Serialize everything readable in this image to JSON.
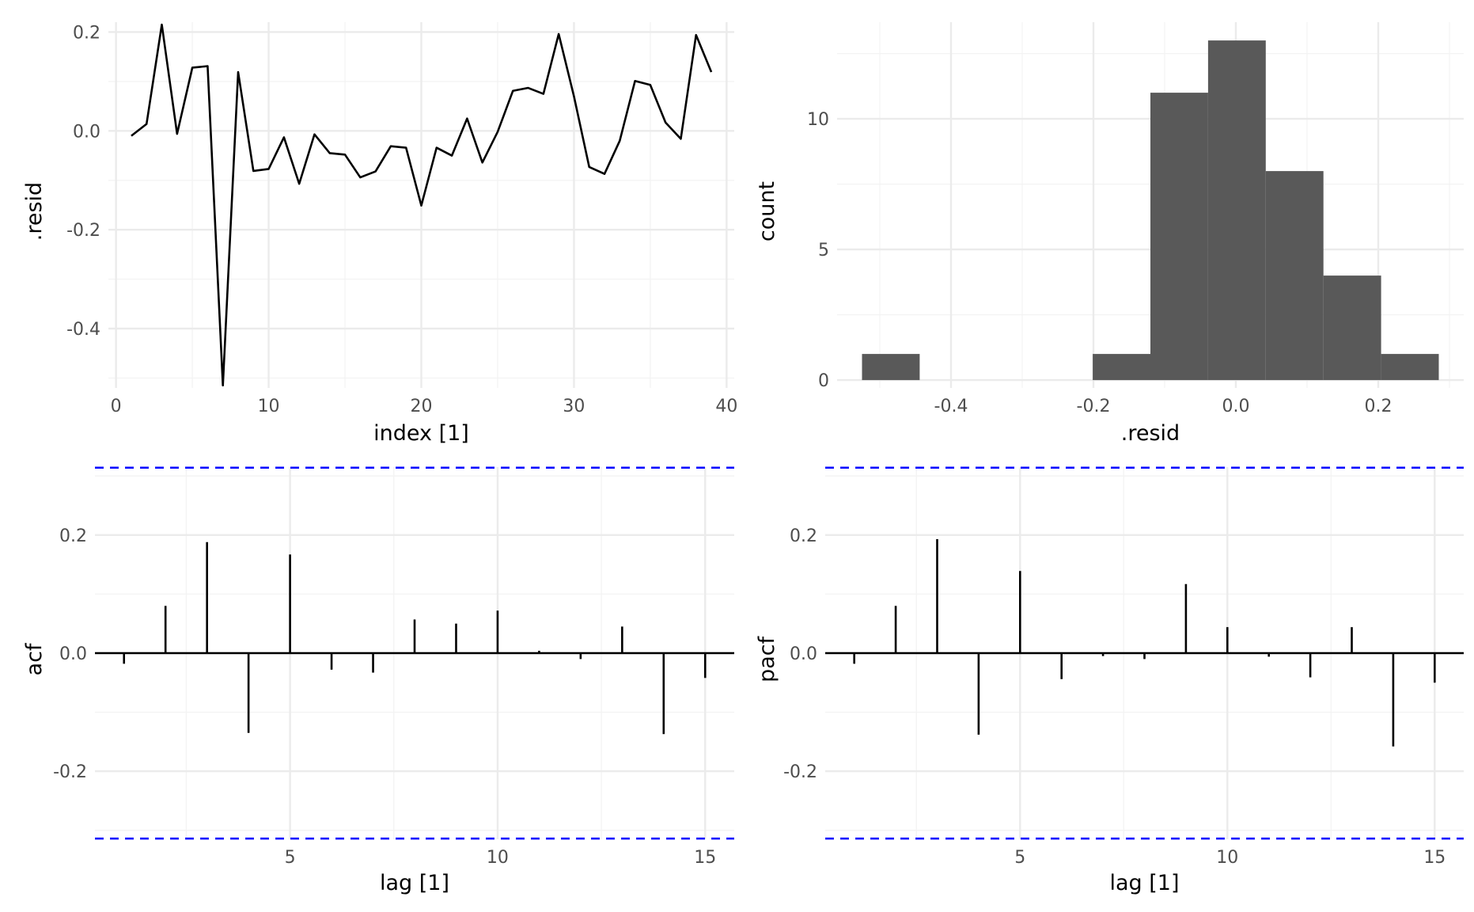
{
  "chart_data": [
    {
      "id": "resid-line",
      "type": "line",
      "xlabel": "index [1]",
      "ylabel": ".resid",
      "xlim": [
        -0.5,
        40.5
      ],
      "ylim": [
        -0.52,
        0.22
      ],
      "x_ticks": [
        0,
        10,
        20,
        30,
        40
      ],
      "y_ticks": [
        -0.4,
        -0.2,
        0.0,
        0.2
      ],
      "x_tick_labels": [
        "0",
        "10",
        "20",
        "30",
        "40"
      ],
      "y_tick_labels": [
        "-0.4",
        "-0.2",
        "0.0",
        "0.2"
      ],
      "grid": true,
      "x": [
        1,
        2,
        3,
        4,
        5,
        6,
        7,
        8,
        9,
        10,
        11,
        12,
        13,
        14,
        15,
        16,
        17,
        18,
        19,
        20,
        21,
        22,
        23,
        24,
        25,
        26,
        27,
        28,
        29,
        30,
        31,
        32,
        33,
        34,
        35,
        36,
        37,
        38,
        39
      ],
      "y": [
        -0.01,
        0.014,
        0.215,
        -0.006,
        0.128,
        0.131,
        -0.515,
        0.119,
        -0.081,
        -0.077,
        -0.013,
        -0.107,
        -0.007,
        -0.045,
        -0.048,
        -0.094,
        -0.082,
        -0.031,
        -0.034,
        -0.151,
        -0.034,
        -0.05,
        0.025,
        -0.064,
        -0.002,
        0.081,
        0.087,
        0.075,
        0.196,
        0.07,
        -0.073,
        -0.087,
        -0.02,
        0.101,
        0.093,
        0.017,
        -0.016,
        0.194,
        0.119
      ]
    },
    {
      "id": "resid-histogram",
      "type": "bar",
      "xlabel": ".resid",
      "ylabel": "count",
      "xlim": [
        -0.56,
        0.32
      ],
      "ylim": [
        -0.3,
        13.7
      ],
      "x_ticks": [
        -0.4,
        -0.2,
        0.0,
        0.2
      ],
      "y_ticks": [
        0,
        5,
        10
      ],
      "x_tick_labels": [
        "-0.4",
        "-0.2",
        "0.0",
        "0.2"
      ],
      "y_tick_labels": [
        "0",
        "5",
        "10"
      ],
      "grid": true,
      "bins": [
        {
          "x0": -0.525,
          "x1": -0.444,
          "count": 1
        },
        {
          "x0": -0.444,
          "x1": -0.363,
          "count": 0
        },
        {
          "x0": -0.363,
          "x1": -0.282,
          "count": 0
        },
        {
          "x0": -0.282,
          "x1": -0.201,
          "count": 0
        },
        {
          "x0": -0.201,
          "x1": -0.12,
          "count": 1
        },
        {
          "x0": -0.12,
          "x1": -0.039,
          "count": 11
        },
        {
          "x0": -0.039,
          "x1": 0.042,
          "count": 13
        },
        {
          "x0": 0.042,
          "x1": 0.123,
          "count": 8
        },
        {
          "x0": 0.123,
          "x1": 0.204,
          "count": 4
        },
        {
          "x0": 0.204,
          "x1": 0.285,
          "count": 1
        }
      ]
    },
    {
      "id": "acf",
      "type": "bar",
      "xlabel": "lag [1]",
      "ylabel": "acf",
      "xlim": [
        0.3,
        15.7
      ],
      "ylim": [
        -0.315,
        0.315
      ],
      "x_ticks": [
        5,
        10,
        15
      ],
      "y_ticks": [
        -0.2,
        0.0,
        0.2
      ],
      "x_tick_labels": [
        "5",
        "10",
        "15"
      ],
      "y_tick_labels": [
        "-0.2",
        "0.0",
        "0.2"
      ],
      "grid": true,
      "significance_bounds": [
        0.314,
        -0.314
      ],
      "bound_color": "#0000ff",
      "lags": [
        1,
        2,
        3,
        4,
        5,
        6,
        7,
        8,
        9,
        10,
        11,
        12,
        13,
        14,
        15
      ],
      "values": [
        -0.018,
        0.08,
        0.188,
        -0.135,
        0.167,
        -0.028,
        -0.033,
        0.057,
        0.05,
        0.072,
        0.004,
        -0.01,
        0.045,
        -0.137,
        -0.042
      ]
    },
    {
      "id": "pacf",
      "type": "bar",
      "xlabel": "lag [1]",
      "ylabel": "pacf",
      "xlim": [
        0.3,
        15.7
      ],
      "ylim": [
        -0.315,
        0.315
      ],
      "x_ticks": [
        5,
        10,
        15
      ],
      "y_ticks": [
        -0.2,
        0.0,
        0.2
      ],
      "x_tick_labels": [
        "5",
        "10",
        "15"
      ],
      "y_tick_labels": [
        "-0.2",
        "0.0",
        "0.2"
      ],
      "grid": true,
      "significance_bounds": [
        0.314,
        -0.314
      ],
      "bound_color": "#0000ff",
      "lags": [
        1,
        2,
        3,
        4,
        5,
        6,
        7,
        8,
        9,
        10,
        11,
        12,
        13,
        14,
        15
      ],
      "values": [
        -0.018,
        0.08,
        0.193,
        -0.138,
        0.139,
        -0.044,
        -0.005,
        -0.01,
        0.117,
        0.044,
        -0.006,
        -0.041,
        0.044,
        -0.158,
        -0.05
      ]
    }
  ],
  "colors": {
    "line": "#000000",
    "histogram_fill": "#595959",
    "grid_major": "#ebebeb",
    "grid_minor": "#f3f3f3",
    "bound": "#0000ff",
    "zero_line": "#000000"
  }
}
